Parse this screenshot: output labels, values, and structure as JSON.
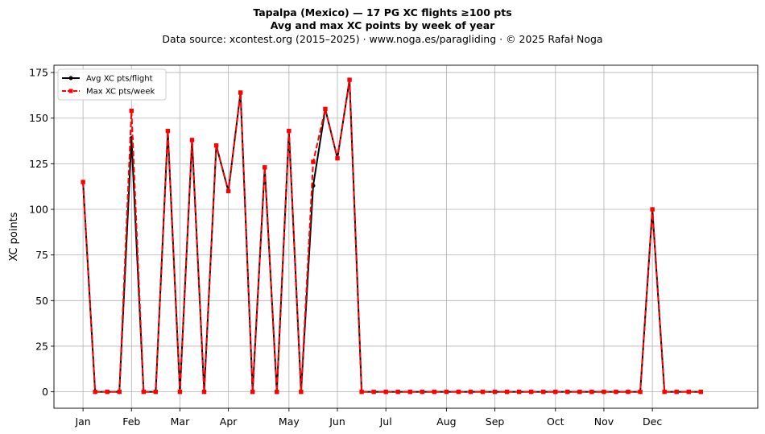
{
  "title_line1": "Tapalpa (Mexico)  —  17 PG XC flights ≥100 pts",
  "title_line2": "Avg and max XC points by week of year",
  "subtitle": "Data source: xcontest.org (2015–2025)  ·  www.noga.es/paragliding  ·  © 2025 Rafał Noga",
  "chart_data": {
    "type": "line",
    "title": "Tapalpa (Mexico)  —  17 PG XC flights ≥100 pts",
    "subtitle": "Avg and max XC points by week of year",
    "xlabel": "",
    "ylabel": "XC points",
    "x_ticks": [
      {
        "label": "Jan",
        "week": 1
      },
      {
        "label": "Feb",
        "week": 5
      },
      {
        "label": "Mar",
        "week": 9
      },
      {
        "label": "Apr",
        "week": 13
      },
      {
        "label": "May",
        "week": 18
      },
      {
        "label": "Jun",
        "week": 22
      },
      {
        "label": "Jul",
        "week": 26
      },
      {
        "label": "Aug",
        "week": 31
      },
      {
        "label": "Sep",
        "week": 35
      },
      {
        "label": "Oct",
        "week": 40
      },
      {
        "label": "Nov",
        "week": 44
      },
      {
        "label": "Dec",
        "week": 48
      }
    ],
    "xlim": [
      -1.4,
      56.7
    ],
    "yticks": [
      0,
      25,
      50,
      75,
      100,
      125,
      150,
      175
    ],
    "ylim": [
      -9,
      179
    ],
    "grid": true,
    "legend_position": "upper-left",
    "x": [
      1,
      2,
      3,
      4,
      5,
      6,
      7,
      8,
      9,
      10,
      11,
      12,
      13,
      14,
      15,
      16,
      17,
      18,
      19,
      20,
      21,
      22,
      23,
      24,
      25,
      26,
      27,
      28,
      29,
      30,
      31,
      32,
      33,
      34,
      35,
      36,
      37,
      38,
      39,
      40,
      41,
      42,
      43,
      44,
      45,
      46,
      47,
      48,
      49,
      50,
      51,
      52
    ],
    "series": [
      {
        "name": "Avg XC pts/flight",
        "color": "#000000",
        "style": "solid",
        "marker": "circle",
        "values": [
          115,
          0,
          0,
          0,
          139,
          0,
          0,
          143,
          0,
          138,
          0,
          135,
          110,
          164,
          0,
          123,
          0,
          143,
          0,
          113,
          155,
          128,
          171,
          0,
          0,
          0,
          0,
          0,
          0,
          0,
          0,
          0,
          0,
          0,
          0,
          0,
          0,
          0,
          0,
          0,
          0,
          0,
          0,
          0,
          0,
          0,
          0,
          100,
          0,
          0,
          0,
          0
        ]
      },
      {
        "name": "Max XC pts/week",
        "color": "#ff0000",
        "style": "dashed",
        "marker": "square",
        "values": [
          115,
          0,
          0,
          0,
          154,
          0,
          0,
          143,
          0,
          138,
          0,
          135,
          110,
          164,
          0,
          123,
          0,
          143,
          0,
          126,
          155,
          128,
          171,
          0,
          0,
          0,
          0,
          0,
          0,
          0,
          0,
          0,
          0,
          0,
          0,
          0,
          0,
          0,
          0,
          0,
          0,
          0,
          0,
          0,
          0,
          0,
          0,
          100,
          0,
          0,
          0,
          0
        ]
      }
    ]
  }
}
